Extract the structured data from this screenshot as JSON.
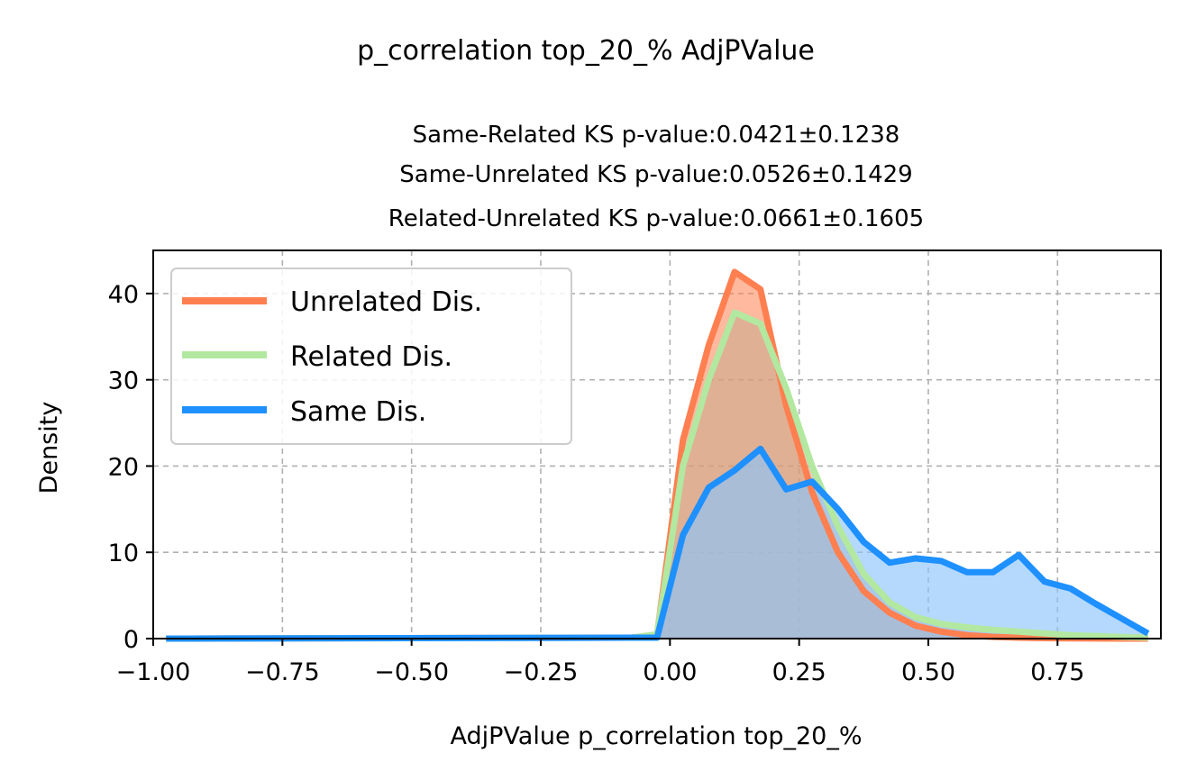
{
  "chart_data": {
    "type": "area",
    "suptitle": "p_correlation top_20_% AdjPValue",
    "title_lines": [
      "Same-Related KS p-value:0.0421±0.1238",
      "Same-Unrelated KS p-value:0.0526±0.1429",
      "Related-Unrelated KS p-value:0.0661±0.1605"
    ],
    "xlabel": "AdjPValue p_correlation top_20_%",
    "ylabel": "Density",
    "xlim": [
      -1.0,
      0.95
    ],
    "ylim": [
      0,
      45
    ],
    "xticks": [
      -1.0,
      -0.75,
      -0.5,
      -0.25,
      0.0,
      0.25,
      0.5,
      0.75
    ],
    "xtick_labels": [
      "−1.00",
      "−0.75",
      "−0.50",
      "−0.25",
      "0.00",
      "0.25",
      "0.50",
      "0.75"
    ],
    "yticks": [
      0,
      10,
      20,
      30,
      40
    ],
    "ytick_labels": [
      "0",
      "10",
      "20",
      "30",
      "40"
    ],
    "grid": true,
    "legend_position": "upper-left",
    "series": [
      {
        "name": "Unrelated Dis.",
        "color": "#ff7f50",
        "fill": "#ff7f50",
        "x": [
          -0.975,
          -0.925,
          -0.075,
          -0.025,
          0.025,
          0.075,
          0.125,
          0.175,
          0.225,
          0.275,
          0.325,
          0.375,
          0.425,
          0.475,
          0.525,
          0.575,
          0.625,
          0.675,
          0.725,
          0.775,
          0.825,
          0.875,
          0.925
        ],
        "y": [
          0,
          0,
          0.1,
          0.4,
          23,
          34,
          42.5,
          40.5,
          27,
          17,
          10,
          5.5,
          3,
          1.5,
          0.8,
          0.4,
          0.2,
          0.1,
          0.05,
          0.02,
          0.01,
          0,
          0
        ]
      },
      {
        "name": "Related Dis.",
        "color": "#b2e8a0",
        "fill": "#c7a98a",
        "x": [
          -0.975,
          -0.925,
          -0.075,
          -0.025,
          0.025,
          0.075,
          0.125,
          0.175,
          0.225,
          0.275,
          0.325,
          0.375,
          0.425,
          0.475,
          0.525,
          0.575,
          0.625,
          0.675,
          0.725,
          0.775,
          0.825,
          0.875,
          0.925
        ],
        "y": [
          0,
          0,
          0.1,
          0.5,
          20,
          30,
          37.8,
          36.5,
          29,
          20,
          13,
          7.5,
          4.2,
          2.5,
          1.7,
          1.3,
          1.0,
          0.8,
          0.6,
          0.4,
          0.3,
          0.2,
          0.1
        ]
      },
      {
        "name": "Same Dis.",
        "color": "#1e90ff",
        "fill": "#8cc4fa",
        "x": [
          -0.975,
          -0.925,
          -0.075,
          -0.025,
          0.025,
          0.075,
          0.125,
          0.175,
          0.225,
          0.275,
          0.325,
          0.375,
          0.425,
          0.475,
          0.525,
          0.575,
          0.625,
          0.675,
          0.725,
          0.775,
          0.825,
          0.875,
          0.925
        ],
        "y": [
          0,
          0,
          0.1,
          0.1,
          12,
          17.5,
          19.5,
          22,
          17.3,
          18.2,
          15,
          11.2,
          8.8,
          9.3,
          9.0,
          7.7,
          7.7,
          9.7,
          6.6,
          5.8,
          4.0,
          2.3,
          0.6
        ]
      }
    ]
  }
}
